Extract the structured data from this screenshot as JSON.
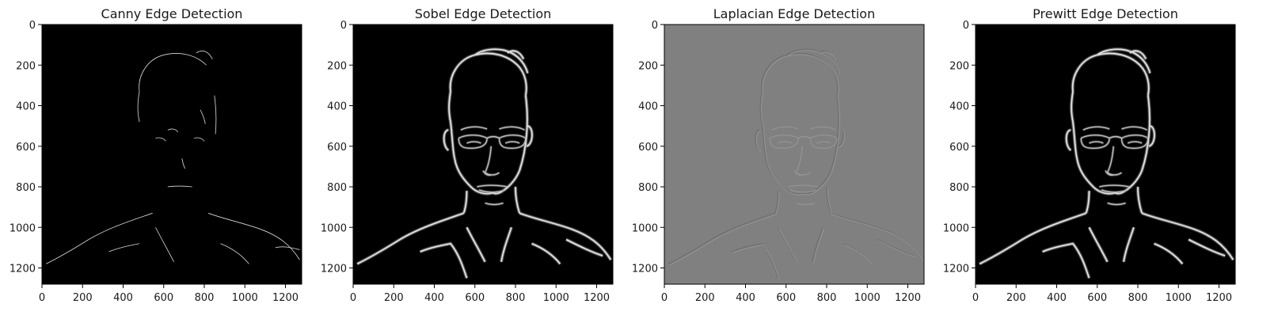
{
  "figure": {
    "panels": [
      {
        "title": "Canny Edge Detection",
        "style": "canny",
        "background": "#000000"
      },
      {
        "title": "Sobel Edge Detection",
        "style": "gradient",
        "background": "#000000"
      },
      {
        "title": "Laplacian Edge Detection",
        "style": "laplacian",
        "background": "#808080"
      },
      {
        "title": "Prewitt Edge Detection",
        "style": "gradient",
        "background": "#000000"
      }
    ],
    "x_ticks": [
      "0",
      "200",
      "400",
      "600",
      "800",
      "1000",
      "1200"
    ],
    "y_ticks": [
      "0",
      "200",
      "400",
      "600",
      "800",
      "1000",
      "1200"
    ],
    "image_extent": [
      0,
      1280
    ]
  }
}
